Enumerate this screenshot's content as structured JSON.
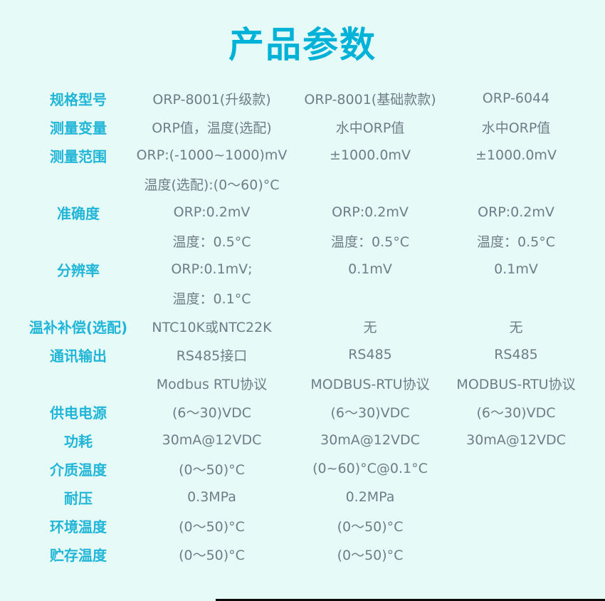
{
  "page": {
    "title": "产品参数"
  },
  "colors": {
    "background": "#e6faf7",
    "title_text": "#00b2d8",
    "label_text": "#21b6d8",
    "value_text": "#6f7d88",
    "divider": "#0a0a0a"
  },
  "table": {
    "rows": [
      {
        "label": "规格型号",
        "c1": "ORP-8001(升级款)",
        "c2": "ORP-8001(基础款款)",
        "c3": "ORP-6044"
      },
      {
        "label": "测量变量",
        "c1": "ORP值，温度(选配)",
        "c2": "水中ORP值",
        "c3": "水中ORP值"
      },
      {
        "label": "测量范围",
        "c1": "ORP:(-1000~1000)mV",
        "c2": "±1000.0mV",
        "c3": "±1000.0mV"
      },
      {
        "label": "",
        "c1": "温度(选配):(0～60)°C",
        "c2": "",
        "c3": ""
      },
      {
        "label": "准确度",
        "c1": "ORP:0.2mV",
        "c2": "ORP:0.2mV",
        "c3": "ORP:0.2mV"
      },
      {
        "label": "",
        "c1": "温度：0.5°C",
        "c2": "温度：0.5°C",
        "c3": "温度：0.5°C"
      },
      {
        "label": "分辨率",
        "c1": "ORP:0.1mV;",
        "c2": "0.1mV",
        "c3": "0.1mV"
      },
      {
        "label": "",
        "c1": "温度：0.1°C",
        "c2": "",
        "c3": ""
      },
      {
        "label": "温补补偿(选配)",
        "c1": "NTC10K或NTC22K",
        "c2": "无",
        "c3": "无"
      },
      {
        "label": "通讯输出",
        "c1": "RS485接口",
        "c2": "RS485",
        "c3": "RS485"
      },
      {
        "label": "",
        "c1": "Modbus RTU协议",
        "c2": "MODBUS-RTU协议",
        "c3": "MODBUS-RTU协议"
      },
      {
        "label": "供电电源",
        "c1": "(6～30)VDC",
        "c2": "(6～30)VDC",
        "c3": "(6～30)VDC"
      },
      {
        "label": "功耗",
        "c1": "30mA@12VDC",
        "c2": "30mA@12VDC",
        "c3": "30mA@12VDC"
      },
      {
        "label": "介质温度",
        "c1": "(0～50)°C",
        "c2": "(0~60)°C@0.1°C",
        "c3": ""
      },
      {
        "label": "耐压",
        "c1": "0.3MPa",
        "c2": "0.2MPa",
        "c3": ""
      },
      {
        "label": "环境温度",
        "c1": "(0～50)°C",
        "c2": "(0～50)°C",
        "c3": ""
      },
      {
        "label": "贮存温度",
        "c1": "(0～50)°C",
        "c2": "(0～50)°C",
        "c3": ""
      }
    ]
  }
}
